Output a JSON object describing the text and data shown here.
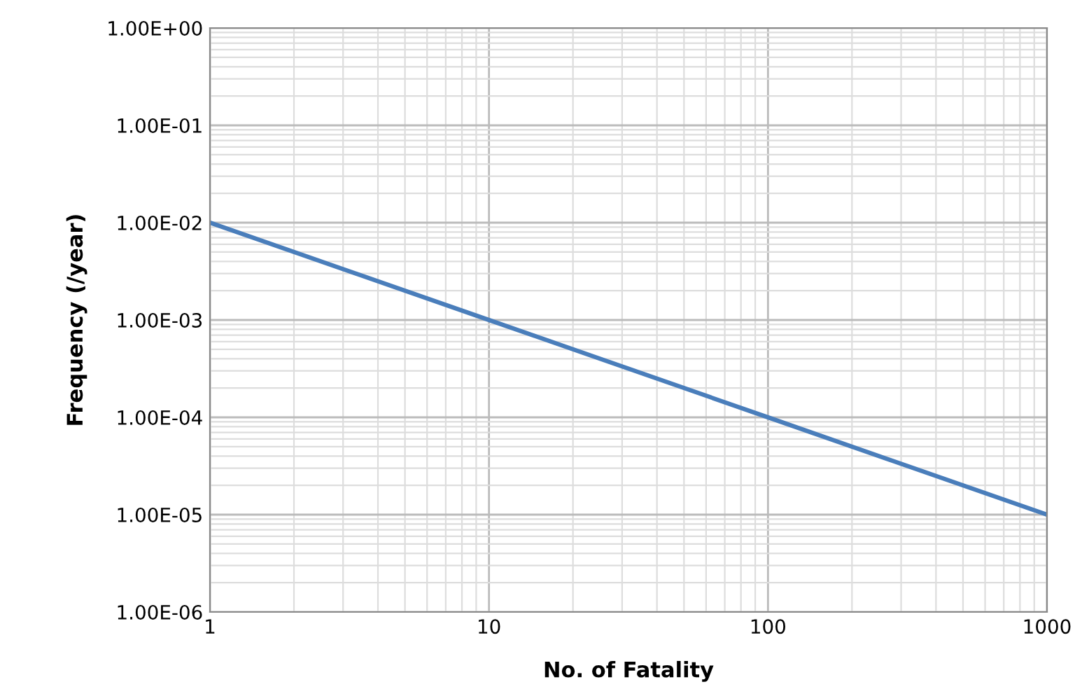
{
  "chart_data": {
    "type": "line",
    "xlabel": "No. of Fatality",
    "ylabel": "Frequency (/year)",
    "log": "xy",
    "grid": true,
    "marker": "none",
    "line_style": "solid",
    "xlim": [
      1,
      1000
    ],
    "xticks": [
      1,
      10,
      100,
      1000
    ],
    "ylim": [
      1e-06,
      1
    ],
    "yticks": [
      {
        "value": 1e-06,
        "label": "1.00E-06"
      },
      {
        "value": 1e-05,
        "label": "1.00E-05"
      },
      {
        "value": 0.0001,
        "label": "1.00E-04"
      },
      {
        "value": 0.001,
        "label": "1.00E-03"
      },
      {
        "value": 0.01,
        "label": "1.00E-02"
      },
      {
        "value": 0.1,
        "label": "1.00E-01"
      },
      {
        "value": 1,
        "label": "1.00E+00"
      }
    ],
    "series": [
      {
        "color": "#4a7ebb",
        "x": [
          1,
          10,
          100,
          1000
        ],
        "values": [
          0.01,
          0.001,
          0.0001,
          1e-05
        ]
      }
    ]
  }
}
